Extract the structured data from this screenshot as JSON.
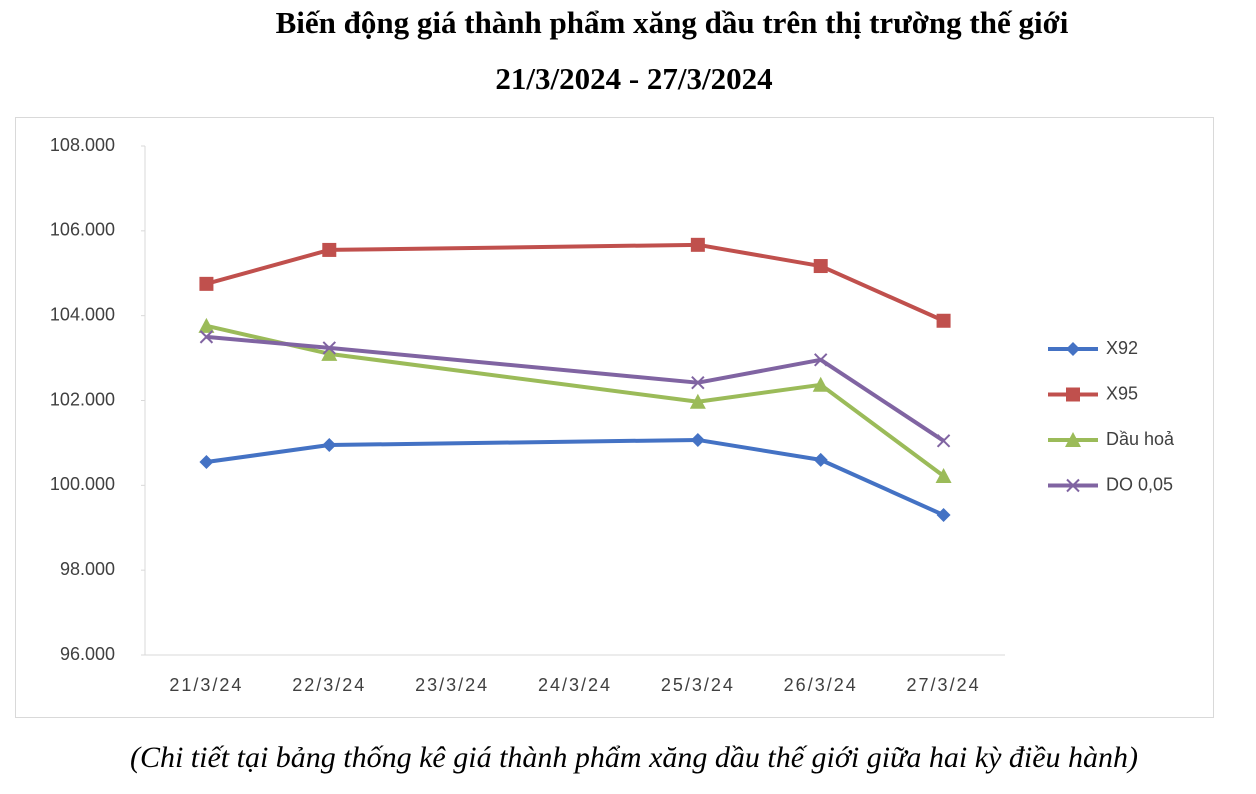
{
  "chart_data": {
    "type": "line",
    "title": "Biến động giá thành phẩm xăng dầu trên thị trường thế giới",
    "subtitle": "21/3/2024 - 27/3/2024",
    "caption": "(Chi tiết tại bảng thống kê giá thành phẩm xăng dầu thế giới giữa hai kỳ điều hành)",
    "categories": [
      "21/3/24",
      "22/3/24",
      "23/3/24",
      "24/3/24",
      "25/3/24",
      "26/3/24",
      "27/3/24"
    ],
    "series": [
      {
        "name": "X92",
        "color": "#4472c4",
        "marker": "diamond",
        "values": [
          100550,
          100950,
          null,
          null,
          101070,
          100600,
          99300
        ]
      },
      {
        "name": "X95",
        "color": "#c0504d",
        "marker": "square",
        "values": [
          104750,
          105550,
          null,
          null,
          105670,
          105170,
          103880
        ]
      },
      {
        "name": "Dầu hoả",
        "color": "#9bbb59",
        "marker": "triangle",
        "values": [
          103760,
          103100,
          null,
          null,
          101970,
          102370,
          100220
        ]
      },
      {
        "name": "DO 0,05",
        "color": "#8064a2",
        "marker": "x",
        "values": [
          103500,
          103240,
          null,
          null,
          102420,
          102960,
          101050
        ]
      }
    ],
    "ylim": [
      96000,
      108000
    ],
    "yticks": [
      {
        "value": 96000,
        "label": "96.000"
      },
      {
        "value": 98000,
        "label": "98.000"
      },
      {
        "value": 100000,
        "label": "100.000"
      },
      {
        "value": 102000,
        "label": "102.000"
      },
      {
        "value": 104000,
        "label": "104.000"
      },
      {
        "value": 106000,
        "label": "106.000"
      },
      {
        "value": 108000,
        "label": "108.000"
      }
    ],
    "legend": "right"
  }
}
